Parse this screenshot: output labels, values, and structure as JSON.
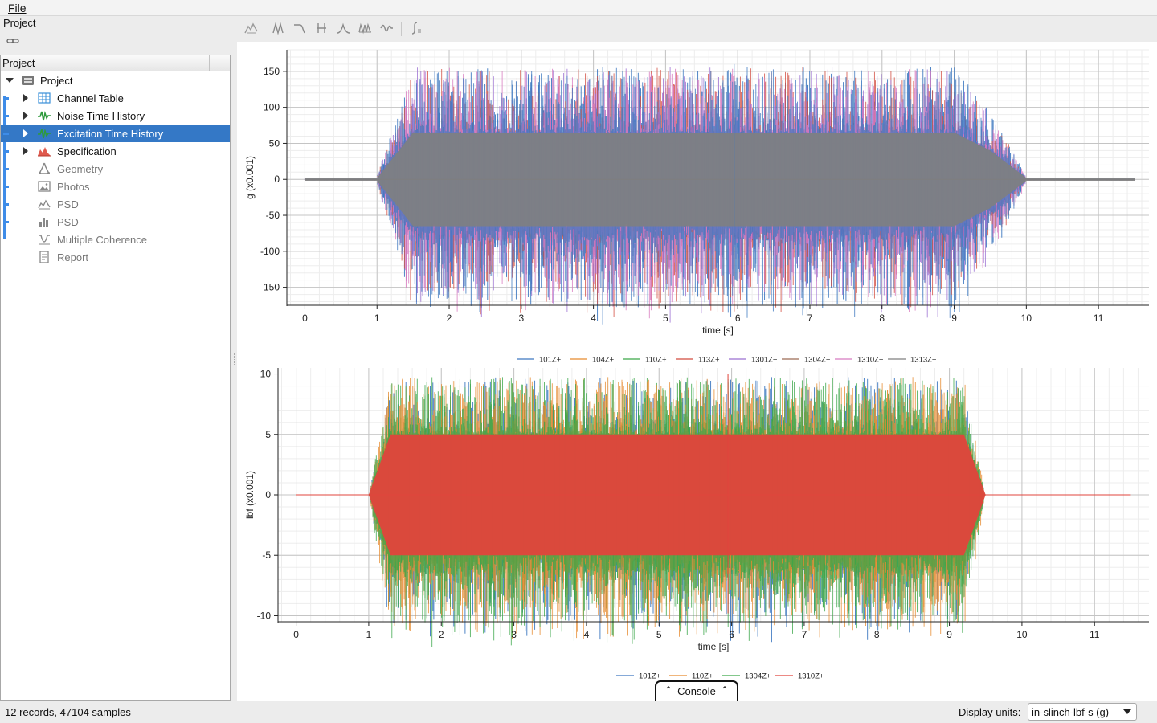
{
  "menu": {
    "file": "File"
  },
  "project_pane": {
    "title": "Project"
  },
  "tree": {
    "header": "Project",
    "root": "Project",
    "items": [
      {
        "label": "Channel Table",
        "icon": "table-icon",
        "expandable": true
      },
      {
        "label": "Noise Time History",
        "icon": "time-history-icon",
        "expandable": true
      },
      {
        "label": "Excitation Time History",
        "icon": "time-history-icon",
        "expandable": true,
        "selected": true
      },
      {
        "label": "Specification",
        "icon": "specification-icon",
        "expandable": true
      },
      {
        "label": "Geometry",
        "icon": "geometry-icon",
        "dim": true
      },
      {
        "label": "Photos",
        "icon": "photos-icon",
        "dim": true
      },
      {
        "label": "PSD",
        "icon": "psd-line-icon",
        "dim": true
      },
      {
        "label": "PSD",
        "icon": "psd-bar-icon",
        "dim": true
      },
      {
        "label": "Multiple Coherence",
        "icon": "coherence-icon",
        "dim": true
      },
      {
        "label": "Report",
        "icon": "report-icon",
        "dim": true
      }
    ]
  },
  "toolbar": {
    "icons": [
      "spectrum-tool-icon",
      "band-filter-icon",
      "lowpass-icon",
      "notch-icon",
      "peak-icon",
      "bandpass-icon",
      "wavelet-icon",
      "integrate-icon"
    ]
  },
  "chart_data": [
    {
      "type": "line",
      "xlabel": "time [s]",
      "ylabel": "g (x0.001)",
      "xlim": [
        -0.25,
        11.7
      ],
      "ylim": [
        -175,
        180
      ],
      "xticks": [
        0,
        1,
        2,
        3,
        4,
        5,
        6,
        7,
        8,
        9,
        10,
        11
      ],
      "yticks": [
        150,
        100,
        50,
        0,
        -50,
        -100,
        -150
      ],
      "grid": true,
      "legend_position": "bottom-center",
      "signal_envelope": {
        "t": [
          0,
          1.0,
          1.5,
          9.0,
          9.5,
          10.0,
          11.5
        ],
        "amplitude": [
          2,
          2,
          65,
          65,
          40,
          2,
          2
        ]
      },
      "series": [
        {
          "name": "101Z+",
          "color": "#3d78c0",
          "peak_min": -170,
          "peak_max": 160
        },
        {
          "name": "104Z+",
          "color": "#e68a2e"
        },
        {
          "name": "110Z+",
          "color": "#3aa648"
        },
        {
          "name": "113Z+",
          "color": "#d24b3e"
        },
        {
          "name": "1301Z+",
          "color": "#9a6fd1"
        },
        {
          "name": "1304Z+",
          "color": "#9c6b53"
        },
        {
          "name": "1310Z+",
          "color": "#d87ac0"
        },
        {
          "name": "1313Z+",
          "color": "#7f7f7f"
        }
      ]
    },
    {
      "type": "line",
      "xlabel": "time [s]",
      "ylabel": "lbf (x0.001)",
      "xlim": [
        -0.25,
        11.75
      ],
      "ylim": [
        -10.5,
        10.5
      ],
      "xticks": [
        0,
        1,
        2,
        3,
        4,
        5,
        6,
        7,
        8,
        9,
        10,
        11
      ],
      "yticks": [
        10,
        5,
        0,
        -5,
        -10
      ],
      "grid": true,
      "legend_position": "bottom-center",
      "signal_envelope": {
        "t": [
          0,
          1.0,
          1.3,
          9.2,
          9.5,
          11.5
        ],
        "amplitude": [
          0,
          0,
          5,
          5,
          0,
          0
        ]
      },
      "series": [
        {
          "name": "101Z+",
          "color": "#3d78c0"
        },
        {
          "name": "110Z+",
          "color": "#e68a2e"
        },
        {
          "name": "1304Z+",
          "color": "#3aa648"
        },
        {
          "name": "1310Z+",
          "color": "#e0453c",
          "peak_min": -9.8,
          "peak_max": 10
        }
      ]
    }
  ],
  "console": {
    "label": "Console"
  },
  "status": {
    "records": "12 records, 47104 samples",
    "units_label": "Display units:",
    "units_value": "in-slinch-lbf-s (g)"
  }
}
